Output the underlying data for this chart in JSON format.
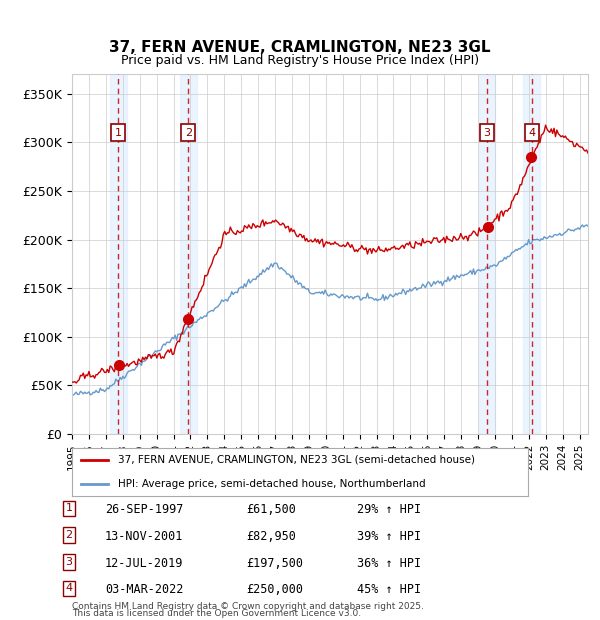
{
  "title_line1": "37, FERN AVENUE, CRAMLINGTON, NE23 3GL",
  "title_line2": "Price paid vs. HM Land Registry's House Price Index (HPI)",
  "ylim": [
    0,
    370000
  ],
  "yticks": [
    0,
    50000,
    100000,
    150000,
    200000,
    250000,
    300000,
    350000
  ],
  "ytick_labels": [
    "£0",
    "£50K",
    "£100K",
    "£150K",
    "£200K",
    "£250K",
    "£300K",
    "£350K"
  ],
  "x_start_year": 1995,
  "x_end_year": 2025,
  "sale_color": "#cc0000",
  "hpi_color": "#6699cc",
  "sale_label": "37, FERN AVENUE, CRAMLINGTON, NE23 3GL (semi-detached house)",
  "hpi_label": "HPI: Average price, semi-detached house, Northumberland",
  "transactions": [
    {
      "num": 1,
      "date": "26-SEP-1997",
      "price": 61500,
      "pct": "29%",
      "year": 1997.73
    },
    {
      "num": 2,
      "date": "13-NOV-2001",
      "price": 82950,
      "pct": "39%",
      "year": 2001.87
    },
    {
      "num": 3,
      "date": "12-JUL-2019",
      "price": 197500,
      "pct": "36%",
      "year": 2019.53
    },
    {
      "num": 4,
      "date": "03-MAR-2022",
      "price": 250000,
      "pct": "45%",
      "year": 2022.17
    }
  ],
  "footer_line1": "Contains HM Land Registry data © Crown copyright and database right 2025.",
  "footer_line2": "This data is licensed under the Open Government Licence v3.0.",
  "background_color": "#ffffff",
  "grid_color": "#cccccc",
  "shading_color": "#ddeeff"
}
